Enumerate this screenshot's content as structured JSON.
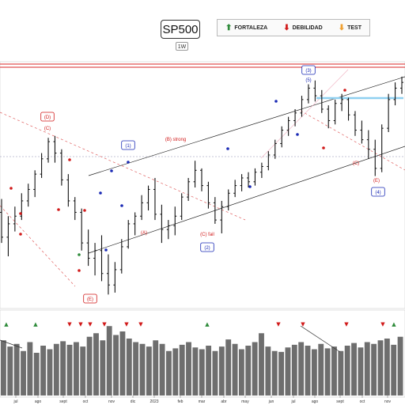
{
  "header": {
    "ticker": "SP500",
    "timeframe": "1W",
    "legend": [
      {
        "label": "FORTALEZA",
        "color": "#2e8b3a",
        "icon": "arrow-up-icon"
      },
      {
        "label": "DEBILIDAD",
        "color": "#d11a1a",
        "icon": "arrow-down-icon"
      },
      {
        "label": "TEST",
        "color": "#f0a030",
        "icon": "arrow-down-icon"
      }
    ]
  },
  "chart_data": {
    "type": "ohlc-bar",
    "title": "SP500",
    "timeframe": "1W",
    "x_tick_labels": [
      "jul",
      "ago",
      "sept",
      "oct",
      "nov",
      "dic",
      "2023",
      "feb",
      "mar",
      "abr",
      "may",
      "jun",
      "jul",
      "ago",
      "sept",
      "oct",
      "nov"
    ],
    "price_bars_approx": [
      [
        3920,
        3990,
        3760,
        3790
      ],
      [
        3790,
        3900,
        3690,
        3860
      ],
      [
        3860,
        3950,
        3820,
        3900
      ],
      [
        3900,
        4020,
        3880,
        3980
      ],
      [
        3980,
        4070,
        3950,
        4040
      ],
      [
        4040,
        4140,
        4000,
        4120
      ],
      [
        4120,
        4230,
        4100,
        4200
      ],
      [
        4200,
        4310,
        4180,
        4290
      ],
      [
        4290,
        4320,
        4180,
        4230
      ],
      [
        4230,
        4250,
        4060,
        4090
      ],
      [
        4090,
        4120,
        3950,
        3980
      ],
      [
        3980,
        4000,
        3880,
        3920
      ],
      [
        3920,
        3940,
        3720,
        3760
      ],
      [
        3760,
        3830,
        3640,
        3680
      ],
      [
        3680,
        3760,
        3590,
        3720
      ],
      [
        3720,
        3800,
        3560,
        3600
      ],
      [
        3600,
        3700,
        3490,
        3540
      ],
      [
        3540,
        3660,
        3500,
        3620
      ],
      [
        3620,
        3780,
        3600,
        3740
      ],
      [
        3740,
        3880,
        3730,
        3860
      ],
      [
        3860,
        3920,
        3800,
        3900
      ],
      [
        3900,
        4010,
        3880,
        3970
      ],
      [
        3970,
        4060,
        3930,
        4040
      ],
      [
        4040,
        4100,
        3880,
        3910
      ],
      [
        3910,
        3960,
        3760,
        3830
      ],
      [
        3830,
        3880,
        3780,
        3850
      ],
      [
        3850,
        3950,
        3800,
        3900
      ],
      [
        3900,
        4020,
        3880,
        4000
      ],
      [
        4000,
        4100,
        3980,
        4080
      ],
      [
        4080,
        4190,
        4050,
        4140
      ],
      [
        4140,
        4150,
        4030,
        4060
      ],
      [
        4060,
        4080,
        3940,
        3970
      ],
      [
        3970,
        4000,
        3860,
        3880
      ],
      [
        3880,
        3980,
        3810,
        3950
      ],
      [
        3950,
        4040,
        3930,
        4020
      ],
      [
        4020,
        4090,
        4000,
        4060
      ],
      [
        4060,
        4120,
        4030,
        4100
      ],
      [
        4100,
        4130,
        4050,
        4080
      ],
      [
        4080,
        4150,
        4060,
        4130
      ],
      [
        4130,
        4180,
        4100,
        4160
      ],
      [
        4160,
        4240,
        4140,
        4220
      ],
      [
        4220,
        4300,
        4200,
        4280
      ],
      [
        4280,
        4370,
        4260,
        4350
      ],
      [
        4350,
        4420,
        4320,
        4400
      ],
      [
        4400,
        4460,
        4370,
        4440
      ],
      [
        4440,
        4530,
        4420,
        4510
      ],
      [
        4510,
        4590,
        4490,
        4570
      ],
      [
        4570,
        4610,
        4500,
        4530
      ],
      [
        4530,
        4560,
        4440,
        4460
      ],
      [
        4460,
        4480,
        4360,
        4400
      ],
      [
        4400,
        4510,
        4380,
        4490
      ],
      [
        4490,
        4540,
        4450,
        4510
      ],
      [
        4510,
        4520,
        4400,
        4430
      ],
      [
        4430,
        4450,
        4320,
        4350
      ],
      [
        4350,
        4400,
        4280,
        4300
      ],
      [
        4300,
        4350,
        4200,
        4250
      ],
      [
        4250,
        4300,
        4110,
        4150
      ],
      [
        4150,
        4380,
        4130,
        4360
      ],
      [
        4360,
        4540,
        4340,
        4510
      ],
      [
        4510,
        4600,
        4480,
        4570
      ],
      [
        4570,
        4630,
        4540,
        4600
      ]
    ],
    "volume_approx": [
      62,
      55,
      58,
      50,
      60,
      48,
      56,
      52,
      58,
      61,
      57,
      60,
      55,
      66,
      70,
      62,
      78,
      68,
      72,
      64,
      60,
      58,
      55,
      62,
      58,
      50,
      53,
      57,
      60,
      54,
      52,
      56,
      50,
      55,
      63,
      58,
      52,
      56,
      60,
      70,
      55,
      50,
      49,
      54,
      57,
      60,
      56,
      52,
      58,
      53,
      55,
      50,
      56,
      59,
      54,
      60,
      58,
      62,
      64,
      57,
      66
    ],
    "wave_labels": [
      {
        "text": "(D)",
        "color": "#d11a1a",
        "boxed": true
      },
      {
        "text": "(C)",
        "color": "#d11a1a"
      },
      {
        "text": "(B) strong",
        "color": "#d11a1a"
      },
      {
        "text": "(C) fail",
        "color": "#d11a1a"
      },
      {
        "text": "(A)",
        "color": "#d11a1a"
      },
      {
        "text": "(E)",
        "color": "#d11a1a",
        "boxed": true
      },
      {
        "text": "(E)",
        "color": "#d11a1a"
      },
      {
        "text": "(C)",
        "color": "#d11a1a"
      },
      {
        "text": "(1)",
        "color": "#1a2ab5",
        "boxed": true
      },
      {
        "text": "(2)",
        "color": "#1a2ab5",
        "boxed": true
      },
      {
        "text": "(3)",
        "color": "#1a2ab5",
        "boxed": true
      },
      {
        "text": "(4)",
        "color": "#1a2ab5",
        "boxed": true
      },
      {
        "text": "(5)",
        "color": "#1a2ab5"
      }
    ]
  }
}
